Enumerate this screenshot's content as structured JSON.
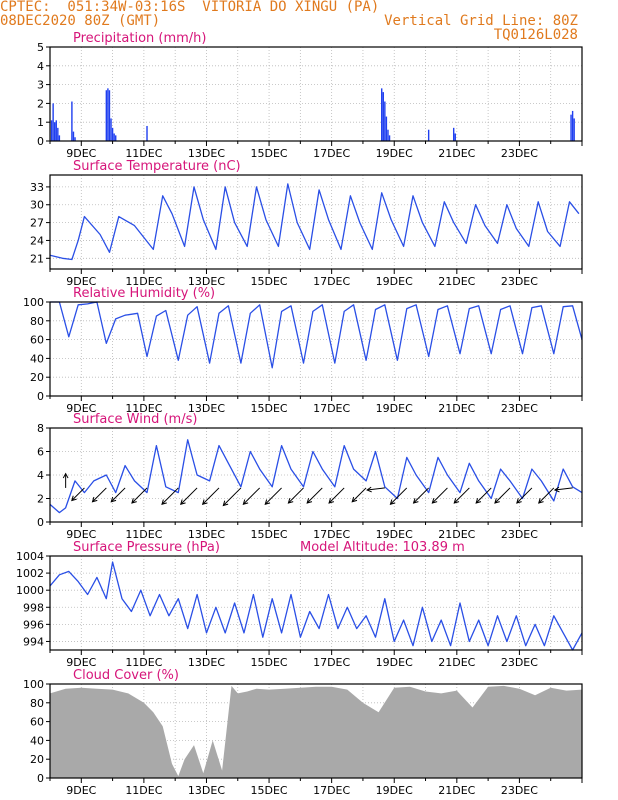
{
  "header": {
    "line1": "CPTEC:  051:34W-03:16S  VITORIA DO XINGU (PA)",
    "line2_left": "08DEC2020 80Z (GMT)",
    "line2_right": "Vertical Grid Line: 80Z",
    "code": "TQ0126L028"
  },
  "colors": {
    "header": "#e07a1e",
    "title": "#d6157a",
    "line": "#2a4fe6",
    "bar": "#1f3ff0",
    "cloud": "#a9a9a9",
    "wind_arrow": "#000000"
  },
  "x_ticks": [
    "9DEC",
    "11DEC",
    "13DEC",
    "15DEC",
    "17DEC",
    "19DEC",
    "21DEC",
    "23DEC"
  ],
  "chart_data": [
    {
      "type": "bar",
      "title": "Precipitation (mm/h)",
      "x_unit": "days since 08DEC2020 00Z",
      "ylim": [
        0,
        5
      ],
      "yticks": [
        0,
        1,
        2,
        3,
        4,
        5
      ],
      "grid": true,
      "bars": [
        [
          0.05,
          1.1
        ],
        [
          0.1,
          2.0
        ],
        [
          0.15,
          1.0
        ],
        [
          0.2,
          1.1
        ],
        [
          0.25,
          0.7
        ],
        [
          0.3,
          0.3
        ],
        [
          0.7,
          2.1
        ],
        [
          0.75,
          0.5
        ],
        [
          0.8,
          0.2
        ],
        [
          1.8,
          2.7
        ],
        [
          1.85,
          2.8
        ],
        [
          1.9,
          2.7
        ],
        [
          1.95,
          1.2
        ],
        [
          2.0,
          0.7
        ],
        [
          2.05,
          0.4
        ],
        [
          2.1,
          0.3
        ],
        [
          3.1,
          0.8
        ],
        [
          10.6,
          2.8
        ],
        [
          10.65,
          2.6
        ],
        [
          10.7,
          2.1
        ],
        [
          10.75,
          1.3
        ],
        [
          10.8,
          0.6
        ],
        [
          10.85,
          0.3
        ],
        [
          12.1,
          0.6
        ],
        [
          12.9,
          0.7
        ],
        [
          12.95,
          0.4
        ],
        [
          16.65,
          1.4
        ],
        [
          16.7,
          1.6
        ],
        [
          16.75,
          1.2
        ]
      ]
    },
    {
      "type": "line",
      "title": "Surface Temperature (nC)",
      "x_unit": "days since 08DEC2020 00Z",
      "ylim": [
        19.2,
        35
      ],
      "yticks": [
        21,
        24,
        27,
        30,
        33
      ],
      "grid": true,
      "x": [
        0,
        0.4,
        0.7,
        0.9,
        1.1,
        1.6,
        1.9,
        2.2,
        2.7,
        3.0,
        3.3,
        3.6,
        3.9,
        4.3,
        4.6,
        4.9,
        5.3,
        5.6,
        5.9,
        6.3,
        6.6,
        6.9,
        7.3,
        7.6,
        7.9,
        8.3,
        8.6,
        8.9,
        9.3,
        9.6,
        9.9,
        10.3,
        10.6,
        10.9,
        11.3,
        11.6,
        11.9,
        12.3,
        12.6,
        12.9,
        13.3,
        13.6,
        13.9,
        14.3,
        14.6,
        14.9,
        15.3,
        15.6,
        15.9,
        16.3,
        16.6,
        16.9
      ],
      "y": [
        21.5,
        21,
        20.8,
        24,
        28,
        25,
        22,
        28,
        26.5,
        24.5,
        22.5,
        31.5,
        28.5,
        23,
        33,
        27.5,
        22.5,
        33,
        27,
        23,
        33,
        27.5,
        23,
        33.5,
        27,
        22.5,
        32.5,
        27.5,
        22.5,
        31.5,
        27,
        22.5,
        32,
        27.5,
        23,
        31.5,
        27,
        23,
        30.5,
        27,
        23.5,
        30,
        26.5,
        23.5,
        30,
        26,
        23,
        30.5,
        25.5,
        23,
        30.5,
        28.5
      ]
    },
    {
      "type": "line",
      "title": "Relative Humidity (%)",
      "x_unit": "days since 08DEC2020 00Z",
      "ylim": [
        0,
        100
      ],
      "yticks": [
        0,
        20,
        40,
        60,
        80,
        100
      ],
      "grid": true,
      "x": [
        0,
        0.3,
        0.6,
        0.9,
        1.2,
        1.5,
        1.8,
        2.1,
        2.4,
        2.8,
        3.1,
        3.4,
        3.7,
        4.1,
        4.4,
        4.7,
        5.1,
        5.4,
        5.7,
        6.1,
        6.4,
        6.7,
        7.1,
        7.4,
        7.7,
        8.1,
        8.4,
        8.7,
        9.1,
        9.4,
        9.7,
        10.1,
        10.4,
        10.7,
        11.1,
        11.4,
        11.7,
        12.1,
        12.4,
        12.7,
        13.1,
        13.4,
        13.7,
        14.1,
        14.4,
        14.7,
        15.1,
        15.4,
        15.7,
        16.1,
        16.4,
        16.7,
        17
      ],
      "y": [
        100,
        100,
        63,
        97,
        98,
        100,
        56,
        82,
        86,
        88,
        42,
        85,
        91,
        38,
        86,
        95,
        35,
        88,
        96,
        35,
        88,
        97,
        30,
        90,
        96,
        35,
        90,
        97,
        35,
        90,
        97,
        38,
        92,
        97,
        38,
        93,
        97,
        42,
        92,
        96,
        45,
        93,
        96,
        45,
        92,
        96,
        45,
        94,
        96,
        45,
        95,
        96,
        60
      ]
    },
    {
      "type": "line",
      "title": "Surface Wind (m/s)",
      "x_unit": "days since 08DEC2020 00Z",
      "ylim": [
        0,
        8
      ],
      "yticks": [
        0,
        2,
        4,
        6,
        8
      ],
      "grid": true,
      "x": [
        0,
        0.3,
        0.5,
        0.8,
        1.1,
        1.4,
        1.8,
        2.1,
        2.4,
        2.7,
        3.1,
        3.4,
        3.7,
        4.1,
        4.4,
        4.7,
        5.1,
        5.4,
        5.7,
        6.1,
        6.4,
        6.7,
        7.1,
        7.4,
        7.7,
        8.1,
        8.4,
        8.7,
        9.1,
        9.4,
        9.7,
        10.1,
        10.4,
        10.7,
        11.1,
        11.4,
        11.7,
        12.1,
        12.4,
        12.7,
        13.1,
        13.4,
        13.7,
        14.1,
        14.4,
        14.7,
        15.1,
        15.4,
        15.7,
        16.1,
        16.4,
        16.7,
        17
      ],
      "y": [
        1.5,
        0.8,
        1.2,
        3.5,
        2.5,
        3.5,
        4.0,
        2.5,
        4.8,
        3.5,
        2.5,
        6.5,
        3.0,
        2.5,
        7.0,
        4.0,
        3.5,
        6.5,
        5.0,
        3.0,
        6.0,
        4.5,
        3.0,
        6.5,
        4.5,
        3.0,
        6.0,
        4.5,
        3.0,
        6.5,
        4.5,
        3.5,
        6.0,
        3.0,
        2.0,
        5.5,
        4.0,
        2.5,
        5.5,
        4.0,
        2.5,
        5.0,
        3.5,
        2.0,
        4.5,
        3.5,
        2.0,
        4.5,
        3.5,
        1.8,
        4.5,
        3.0,
        2.5
      ],
      "arrows": [
        {
          "day": 0.5,
          "speed": 1.5,
          "dir": "up"
        },
        {
          "day": 1.1,
          "speed": 2.5,
          "dir": "sw"
        },
        {
          "day": 1.8,
          "speed": 3.0,
          "dir": "sw"
        },
        {
          "day": 2.4,
          "speed": 3.0,
          "dir": "sw"
        },
        {
          "day": 3.1,
          "speed": 3.5,
          "dir": "sw"
        },
        {
          "day": 4.1,
          "speed": 4.0,
          "dir": "sw"
        },
        {
          "day": 4.7,
          "speed": 4.0,
          "dir": "sw"
        },
        {
          "day": 5.4,
          "speed": 4.0,
          "dir": "sw"
        },
        {
          "day": 6.1,
          "speed": 4.5,
          "dir": "sw"
        },
        {
          "day": 6.7,
          "speed": 4.0,
          "dir": "sw"
        },
        {
          "day": 7.4,
          "speed": 4.0,
          "dir": "sw"
        },
        {
          "day": 8.1,
          "speed": 3.5,
          "dir": "sw"
        },
        {
          "day": 8.7,
          "speed": 3.5,
          "dir": "sw"
        },
        {
          "day": 9.4,
          "speed": 3.5,
          "dir": "sw"
        },
        {
          "day": 10.1,
          "speed": 3.0,
          "dir": "sw"
        },
        {
          "day": 10.7,
          "speed": 2.5,
          "dir": "w"
        },
        {
          "day": 11.4,
          "speed": 4.0,
          "dir": "sw"
        },
        {
          "day": 12.1,
          "speed": 3.5,
          "dir": "sw"
        },
        {
          "day": 12.7,
          "speed": 3.5,
          "dir": "sw"
        },
        {
          "day": 13.4,
          "speed": 3.5,
          "dir": "sw"
        },
        {
          "day": 14.1,
          "speed": 3.5,
          "dir": "sw"
        },
        {
          "day": 14.7,
          "speed": 3.5,
          "dir": "sw"
        },
        {
          "day": 15.4,
          "speed": 3.5,
          "dir": "sw"
        },
        {
          "day": 16.1,
          "speed": 3.5,
          "dir": "sw"
        },
        {
          "day": 16.7,
          "speed": 2.5,
          "dir": "w"
        }
      ]
    },
    {
      "type": "line",
      "title": "Surface Pressure (hPa)",
      "annotation": "Model Altitude: 103.89 m",
      "x_unit": "days since 08DEC2020 00Z",
      "ylim": [
        993,
        1004
      ],
      "yticks": [
        994,
        996,
        998,
        1000,
        1002,
        1004
      ],
      "grid": true,
      "x": [
        0,
        0.3,
        0.6,
        0.9,
        1.2,
        1.5,
        1.8,
        2.0,
        2.3,
        2.6,
        2.9,
        3.2,
        3.5,
        3.8,
        4.1,
        4.4,
        4.7,
        5.0,
        5.3,
        5.6,
        5.9,
        6.2,
        6.5,
        6.8,
        7.1,
        7.4,
        7.7,
        8.0,
        8.3,
        8.6,
        8.9,
        9.2,
        9.5,
        9.8,
        10.1,
        10.4,
        10.7,
        11.0,
        11.3,
        11.6,
        11.9,
        12.2,
        12.5,
        12.8,
        13.1,
        13.4,
        13.7,
        14.0,
        14.3,
        14.6,
        14.9,
        15.2,
        15.5,
        15.8,
        16.1,
        16.4,
        16.7,
        17
      ],
      "y": [
        1000.5,
        1001.8,
        1002.2,
        1001.0,
        999.5,
        1001.5,
        999.0,
        1003.3,
        999.0,
        997.5,
        1000.0,
        997.0,
        999.5,
        997.0,
        999.0,
        995.5,
        999.5,
        995.0,
        998.0,
        995.0,
        998.5,
        995.0,
        999.5,
        994.5,
        999.0,
        995.0,
        999.5,
        994.5,
        997.5,
        995.5,
        999.5,
        995.5,
        998.0,
        995.5,
        997.0,
        994.5,
        999.0,
        994.0,
        996.5,
        993.5,
        998.0,
        994.0,
        996.5,
        993.5,
        998.5,
        994.0,
        996.5,
        993.5,
        997.0,
        994.0,
        997.0,
        993.5,
        996.0,
        993.5,
        997.0,
        995.0,
        993.0,
        995.0
      ]
    },
    {
      "type": "area",
      "title": "Cloud Cover (%)",
      "x_unit": "days since 08DEC2020 00Z",
      "ylim": [
        0,
        100
      ],
      "yticks": [
        0,
        20,
        40,
        60,
        80,
        100
      ],
      "grid": true,
      "x": [
        0,
        0.5,
        1.0,
        1.5,
        2.0,
        2.5,
        3.0,
        3.3,
        3.6,
        3.9,
        4.1,
        4.3,
        4.6,
        4.9,
        5.2,
        5.5,
        5.8,
        6.0,
        6.3,
        6.6,
        7.0,
        7.5,
        8.0,
        8.5,
        9.0,
        9.5,
        10.0,
        10.5,
        11.0,
        11.5,
        12.0,
        12.5,
        13.0,
        13.5,
        14.0,
        14.5,
        15.0,
        15.5,
        16.0,
        16.5,
        17
      ],
      "y": [
        90,
        95,
        96,
        95,
        94,
        90,
        80,
        70,
        55,
        15,
        2,
        20,
        35,
        5,
        40,
        8,
        98,
        90,
        92,
        95,
        94,
        95,
        96,
        97,
        97,
        94,
        80,
        70,
        96,
        97,
        92,
        90,
        93,
        75,
        97,
        98,
        95,
        88,
        96,
        93,
        94
      ]
    }
  ]
}
